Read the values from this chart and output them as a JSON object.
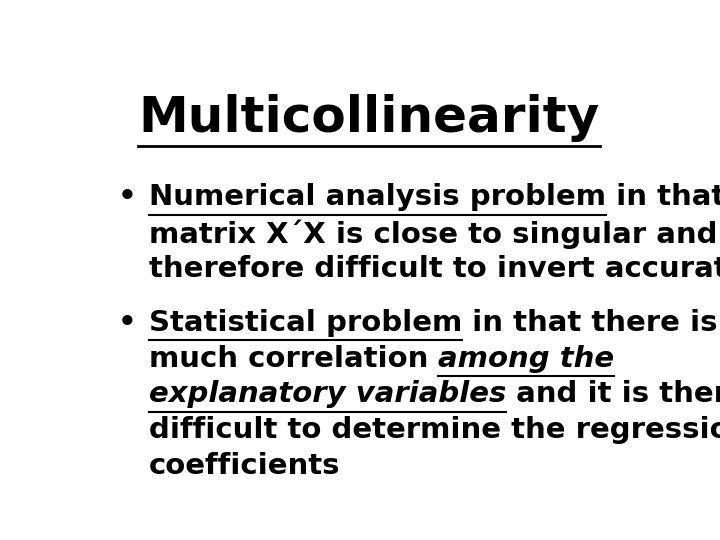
{
  "title": "Multicollinearity",
  "background_color": "#ffffff",
  "text_color": "#000000",
  "title_fontsize": 36,
  "body_fontsize": 21,
  "bullet1_underline": "Numerical analysis problem",
  "bullet1_rest1": " in that the",
  "bullet1_line2": "matrix X´X is close to singular and is",
  "bullet1_line3": "therefore difficult to invert accurately",
  "bullet2_underline": "Statistical problem",
  "bullet2_rest1": " in that there is too",
  "bullet2_line2_normal": "much correlation ",
  "bullet2_line2_italic": "among the",
  "bullet2_line3_italic": "explanatory variables",
  "bullet2_line3_rest": " and it is therefore",
  "bullet2_line4": "difficult to determine the regression",
  "bullet2_line5": "coefficients"
}
